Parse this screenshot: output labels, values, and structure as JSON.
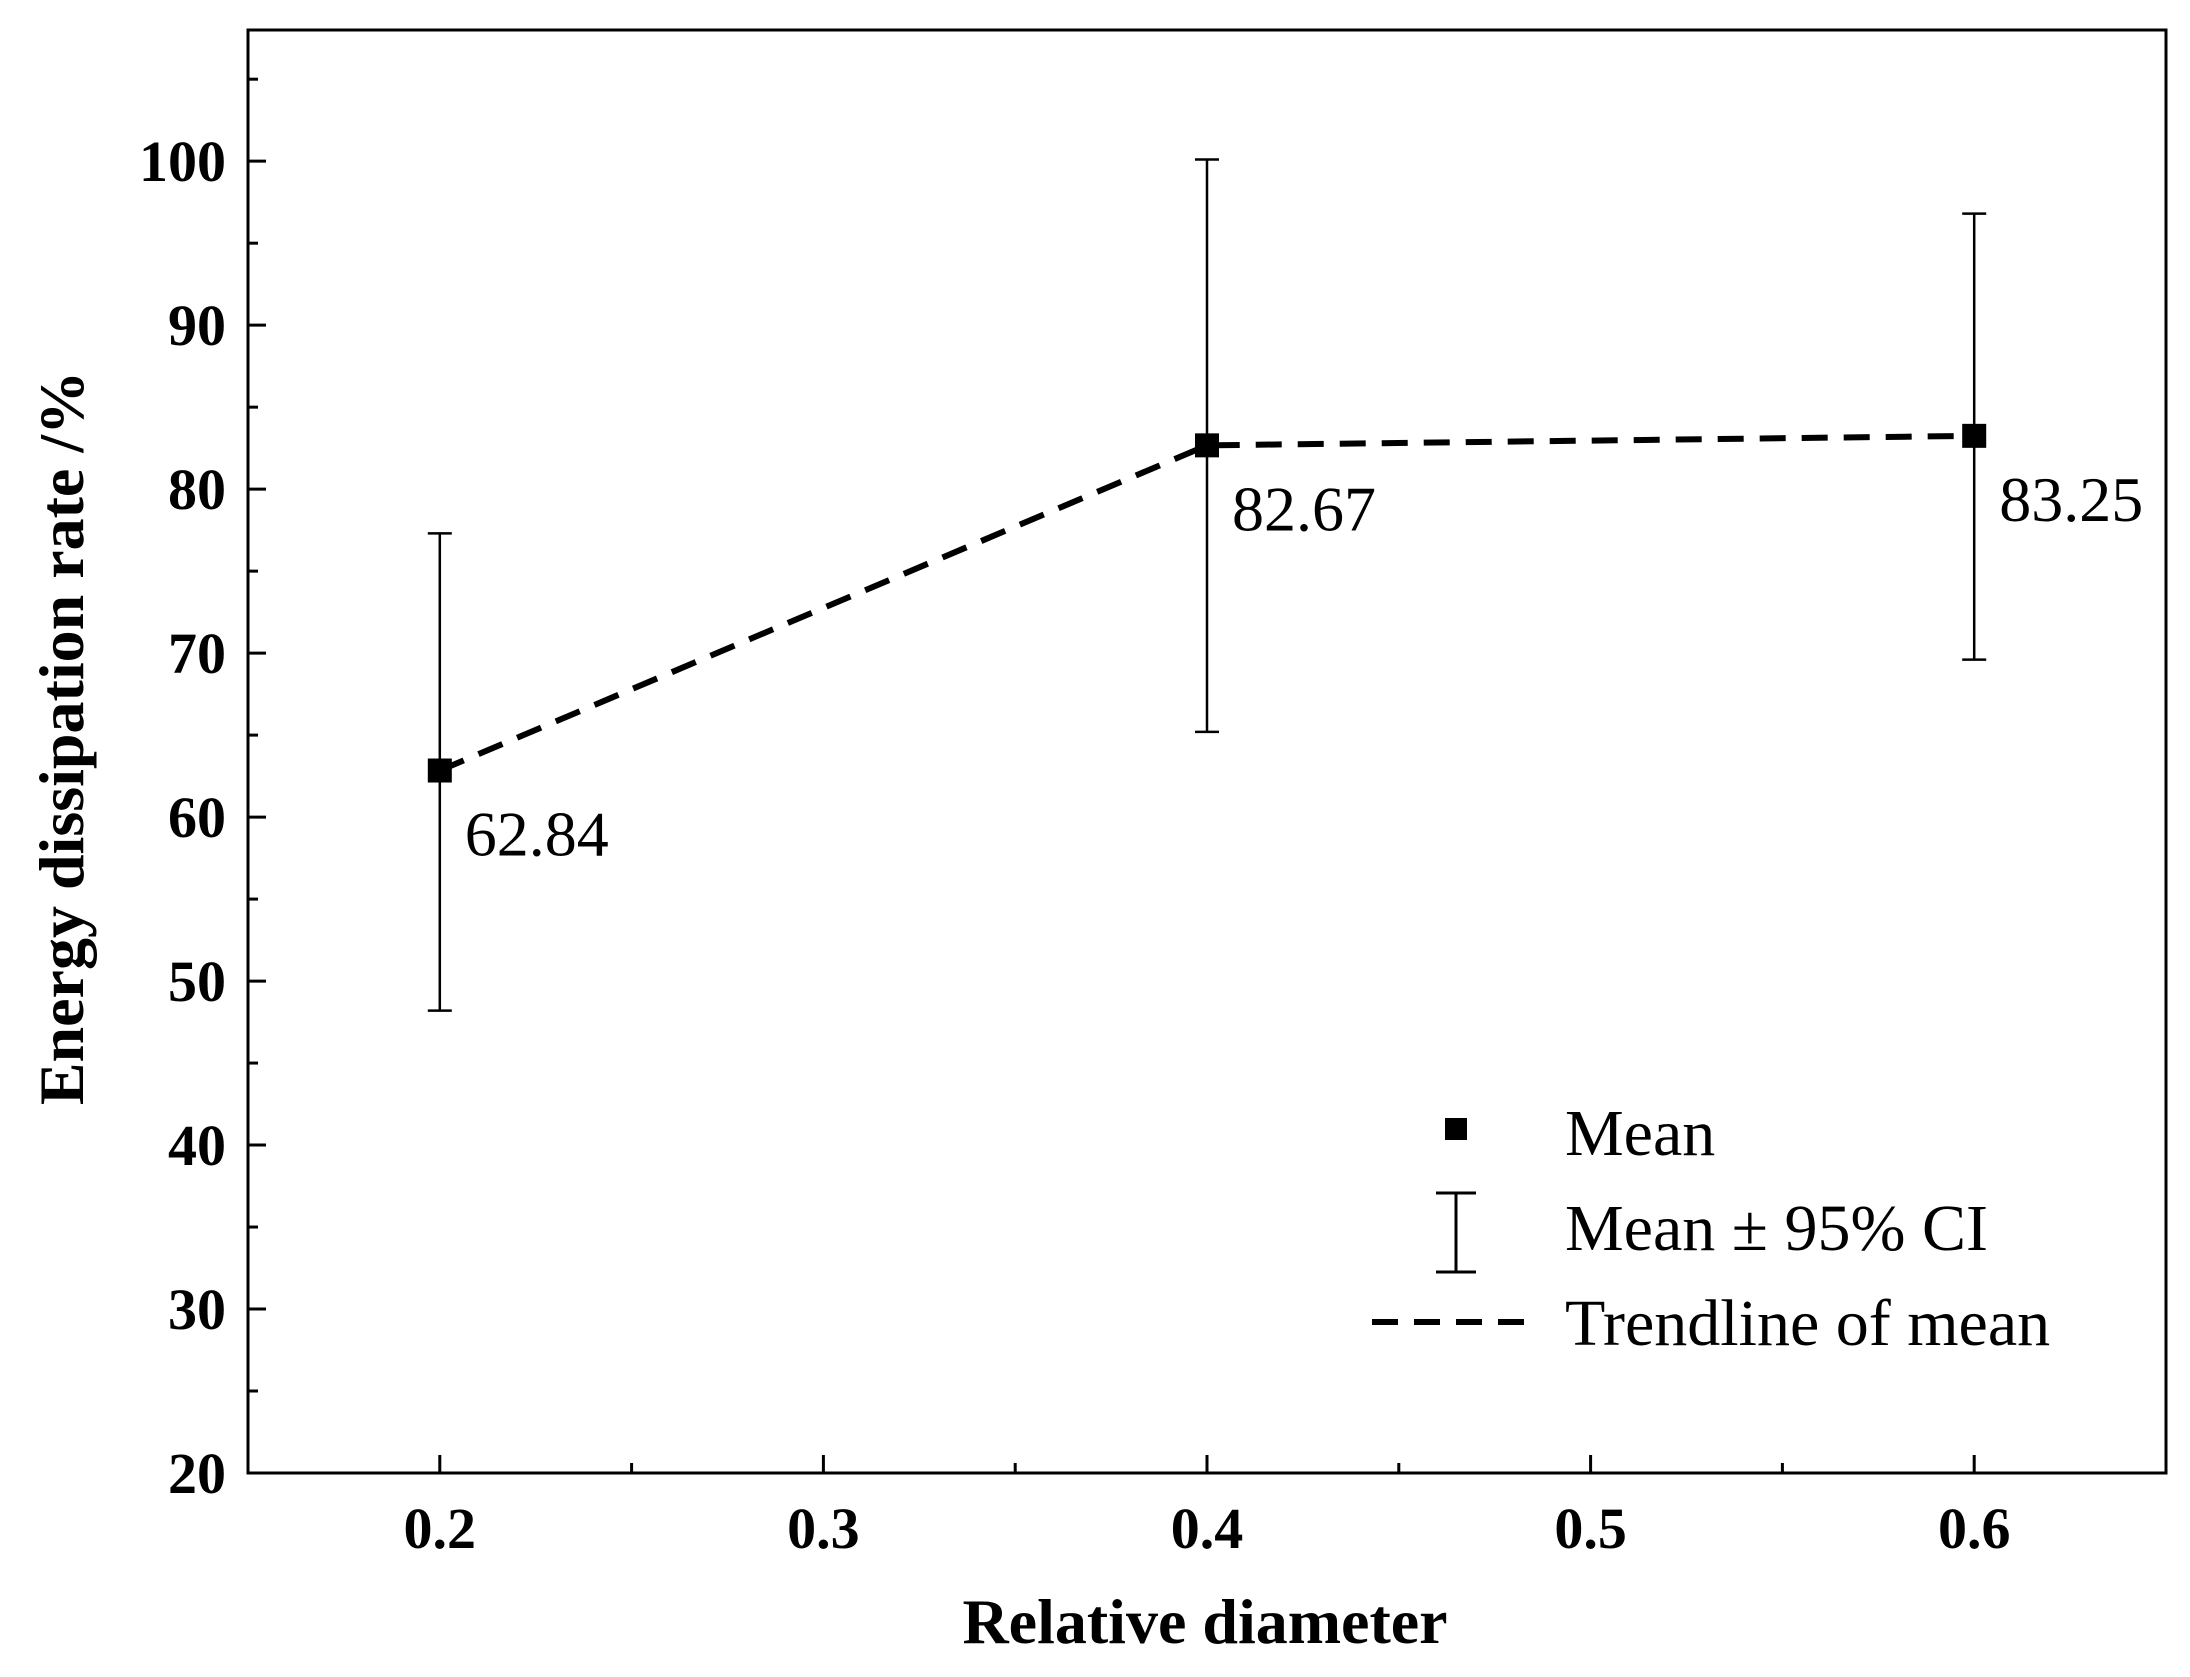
{
  "chart_data": {
    "type": "scatter",
    "title": "",
    "xlabel": "Relative diameter",
    "ylabel": "Energy dissipation rate /%",
    "xlim": [
      0.15,
      0.65
    ],
    "ylim": [
      20,
      108
    ],
    "xticks": [
      0.2,
      0.3,
      0.4,
      0.5,
      0.6
    ],
    "xtick_labels": [
      "0.2",
      "0.3",
      "0.4",
      "0.5",
      "0.6"
    ],
    "yticks": [
      20,
      30,
      40,
      50,
      60,
      70,
      80,
      90,
      100
    ],
    "ytick_labels": [
      "20",
      "30",
      "40",
      "50",
      "60",
      "70",
      "80",
      "90",
      "100"
    ],
    "grid": false,
    "series": [
      {
        "name": "Mean",
        "x": [
          0.2,
          0.4,
          0.6
        ],
        "values": [
          62.84,
          82.67,
          83.25
        ],
        "ci_lower": [
          48.2,
          65.2,
          69.6
        ],
        "ci_upper": [
          77.3,
          100.1,
          96.8
        ],
        "data_labels": [
          "62.84",
          "82.67",
          "83.25"
        ]
      }
    ],
    "legend": {
      "position": "bottom-right",
      "entries": [
        "Mean",
        "Mean ± 95% CI",
        "Trendline of mean"
      ]
    }
  }
}
